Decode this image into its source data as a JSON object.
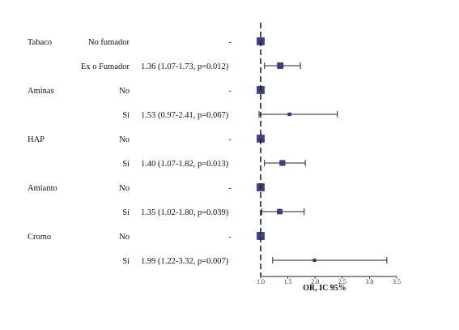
{
  "chart_data": {
    "type": "forest",
    "xlabel": "OR, IC 95%",
    "xlim": [
      1.0,
      3.5
    ],
    "xticks": [
      "1.0",
      "1.5",
      "2.0",
      "2.5",
      "3.0",
      "3.5"
    ],
    "reference_line": 1.0,
    "groups": [
      {
        "variable": "Tabaco",
        "rows": [
          {
            "level": "No fumador",
            "text": "-",
            "or": 1.0,
            "low": null,
            "high": null,
            "reference": true
          },
          {
            "level": "Ex o Fumador",
            "text": "1.36 (1.07-1.73, p=0.012)",
            "or": 1.36,
            "low": 1.07,
            "high": 1.73,
            "reference": false
          }
        ]
      },
      {
        "variable": "Aminas",
        "rows": [
          {
            "level": "No",
            "text": "-",
            "or": 1.0,
            "low": null,
            "high": null,
            "reference": true
          },
          {
            "level": "Sí",
            "text": "1.53 (0.97-2.41, p=0.067)",
            "or": 1.53,
            "low": 0.97,
            "high": 2.41,
            "reference": false
          }
        ]
      },
      {
        "variable": "HAP",
        "rows": [
          {
            "level": "No",
            "text": "-",
            "or": 1.0,
            "low": null,
            "high": null,
            "reference": true
          },
          {
            "level": "Sí",
            "text": "1.40 (1.07-1.82, p=0.013)",
            "or": 1.4,
            "low": 1.07,
            "high": 1.82,
            "reference": false
          }
        ]
      },
      {
        "variable": "Amianto",
        "rows": [
          {
            "level": "No",
            "text": "-",
            "or": 1.0,
            "low": null,
            "high": null,
            "reference": true
          },
          {
            "level": "Sí",
            "text": "1.35 (1.02-1.80, p=0.039)",
            "or": 1.35,
            "low": 1.02,
            "high": 1.8,
            "reference": false
          }
        ]
      },
      {
        "variable": "Cromo",
        "rows": [
          {
            "level": "No",
            "text": "-",
            "or": 1.0,
            "low": null,
            "high": null,
            "reference": true
          },
          {
            "level": "Sí",
            "text": "1.99 (1.22-3.32, p=0.007)",
            "or": 1.99,
            "low": 1.22,
            "high": 3.32,
            "reference": false
          }
        ]
      }
    ],
    "colors": {
      "marker_fill": "#3b3f8c",
      "marker_stroke": "#1c1f55",
      "line": "#222222",
      "text": "#111111"
    }
  }
}
